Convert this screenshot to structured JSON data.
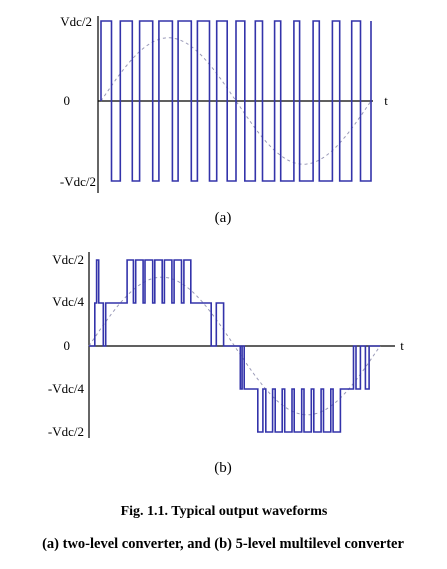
{
  "chart_data": [
    {
      "type": "line",
      "panel_label": "(a)",
      "xlabel": "t",
      "y_tick_labels": [
        "Vdc/2",
        "0",
        "-Vdc/2"
      ],
      "levels": [
        1,
        0,
        -1
      ],
      "pulses_per_period": 14,
      "duty_min": 0.3,
      "duty_max": 0.7,
      "series": [
        {
          "style": "solid",
          "color": "#3333aa",
          "waveform": "two-level PWM square wave"
        },
        {
          "style": "dashed",
          "color": "#9a9ab8",
          "waveform": "sinusoid",
          "amplitude": 0.79
        }
      ]
    },
    {
      "type": "line",
      "panel_label": "(b)",
      "xlabel": "t",
      "y_tick_labels": [
        "Vdc/2",
        "Vdc/4",
        "0",
        "-Vdc/4",
        "-Vdc/2"
      ],
      "levels": [
        1,
        0.5,
        0,
        -0.5,
        -1
      ],
      "steps": [
        [
          0.0,
          0
        ],
        [
          0.04,
          0.5
        ],
        [
          0.052,
          1
        ],
        [
          0.067,
          0.5
        ],
        [
          0.098,
          0
        ],
        [
          0.115,
          0.5
        ],
        [
          0.262,
          1
        ],
        [
          0.305,
          0.5
        ],
        [
          0.321,
          1
        ],
        [
          0.372,
          0.5
        ],
        [
          0.385,
          1
        ],
        [
          0.438,
          0.5
        ],
        [
          0.452,
          1
        ],
        [
          0.503,
          0.5
        ],
        [
          0.518,
          1
        ],
        [
          0.57,
          0.5
        ],
        [
          0.585,
          1
        ],
        [
          0.636,
          0.5
        ],
        [
          0.652,
          1
        ],
        [
          0.7,
          0.5
        ],
        [
          0.84,
          0
        ],
        [
          0.875,
          0.5
        ],
        [
          0.925,
          0
        ],
        [
          1.0,
          0
        ],
        [
          1.04,
          -0.5
        ],
        [
          1.052,
          0
        ],
        [
          1.067,
          -0.5
        ],
        [
          1.098,
          -0.5
        ],
        [
          1.115,
          -0.5
        ],
        [
          1.16,
          -1
        ],
        [
          1.195,
          -0.5
        ],
        [
          1.215,
          -1
        ],
        [
          1.262,
          -0.5
        ],
        [
          1.28,
          -1
        ],
        [
          1.328,
          -0.5
        ],
        [
          1.345,
          -1
        ],
        [
          1.395,
          -0.5
        ],
        [
          1.41,
          -1
        ],
        [
          1.462,
          -0.5
        ],
        [
          1.478,
          -1
        ],
        [
          1.528,
          -0.5
        ],
        [
          1.545,
          -1
        ],
        [
          1.595,
          -0.5
        ],
        [
          1.612,
          -1
        ],
        [
          1.662,
          -0.5
        ],
        [
          1.678,
          -1
        ],
        [
          1.728,
          -0.5
        ],
        [
          1.818,
          0
        ],
        [
          1.835,
          -0.5
        ],
        [
          1.865,
          0
        ],
        [
          1.9,
          -0.5
        ],
        [
          1.925,
          0
        ]
      ],
      "series": [
        {
          "style": "solid",
          "color": "#3333aa",
          "waveform": "5-level staircase PWM"
        },
        {
          "style": "dashed",
          "color": "#9a9ab8",
          "waveform": "sinusoid",
          "amplitude": 0.8
        }
      ]
    }
  ],
  "caption": {
    "line1": "Fig. 1.1. Typical output waveforms",
    "line2": "(a) two-level converter, and (b) 5-level multilevel converter"
  },
  "colors": {
    "waveform": "#3333aa",
    "reference": "#9a9ab8",
    "axis": "#000000"
  }
}
